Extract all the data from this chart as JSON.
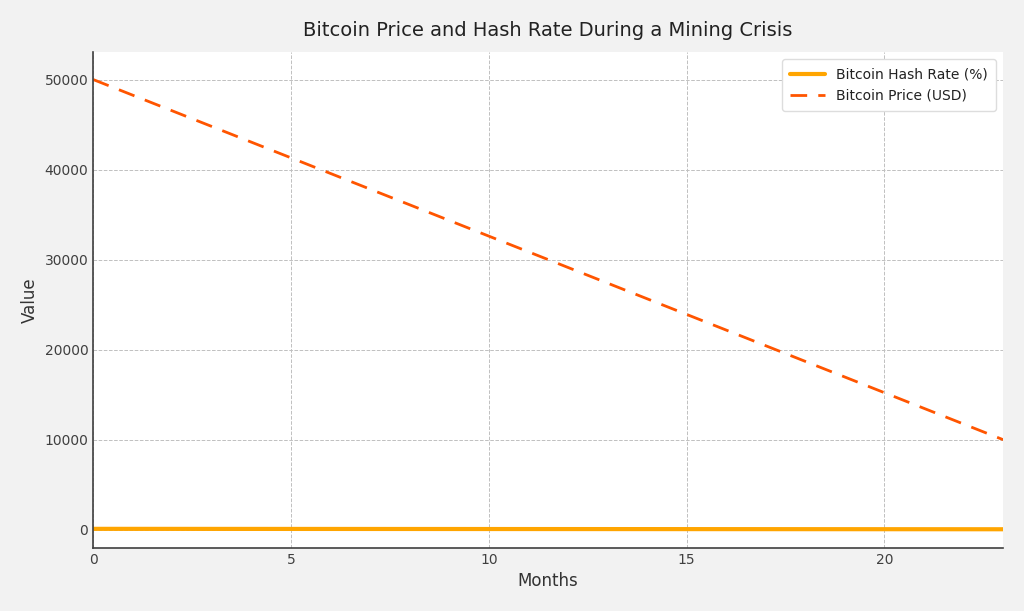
{
  "title": "Bitcoin Price and Hash Rate During a Mining Crisis",
  "xlabel": "Months",
  "ylabel": "Value",
  "months": [
    0,
    1,
    2,
    3,
    4,
    5,
    6,
    7,
    8,
    9,
    10,
    11,
    12,
    13,
    14,
    15,
    16,
    17,
    18,
    19,
    20,
    21,
    22,
    23
  ],
  "hash_rate": [
    100,
    98,
    96,
    94,
    92,
    90,
    88,
    86,
    84,
    82,
    80,
    78,
    76,
    74,
    72,
    70,
    68,
    66,
    64,
    62,
    60,
    58,
    56,
    54
  ],
  "price": [
    50000,
    48261,
    46522,
    44783,
    43043,
    41304,
    39565,
    37826,
    36087,
    34348,
    32609,
    30870,
    29130,
    27391,
    25652,
    23913,
    22174,
    20435,
    18696,
    16957,
    15217,
    13478,
    11739,
    10000
  ],
  "hash_rate_color": "#FFA500",
  "price_color": "#FF5500",
  "hash_rate_label": "Bitcoin Hash Rate (%)",
  "price_label": "Bitcoin Price (USD)",
  "ylim_min": -2000,
  "ylim_max": 53000,
  "xlim_min": 0,
  "xlim_max": 23,
  "figure_facecolor": "#f2f2f2",
  "plot_facecolor": "#ffffff",
  "grid_color": "#c0c0c0",
  "spine_color": "#404040",
  "tick_color": "#404040",
  "title_color": "#222222",
  "label_color": "#333333",
  "title_fontsize": 14,
  "axis_label_fontsize": 12,
  "tick_fontsize": 10,
  "legend_fontsize": 10,
  "hash_rate_linewidth": 3.0,
  "price_linewidth": 2.0,
  "xticks": [
    0,
    5,
    10,
    15,
    20
  ],
  "yticks": [
    0,
    10000,
    20000,
    30000,
    40000,
    50000
  ]
}
